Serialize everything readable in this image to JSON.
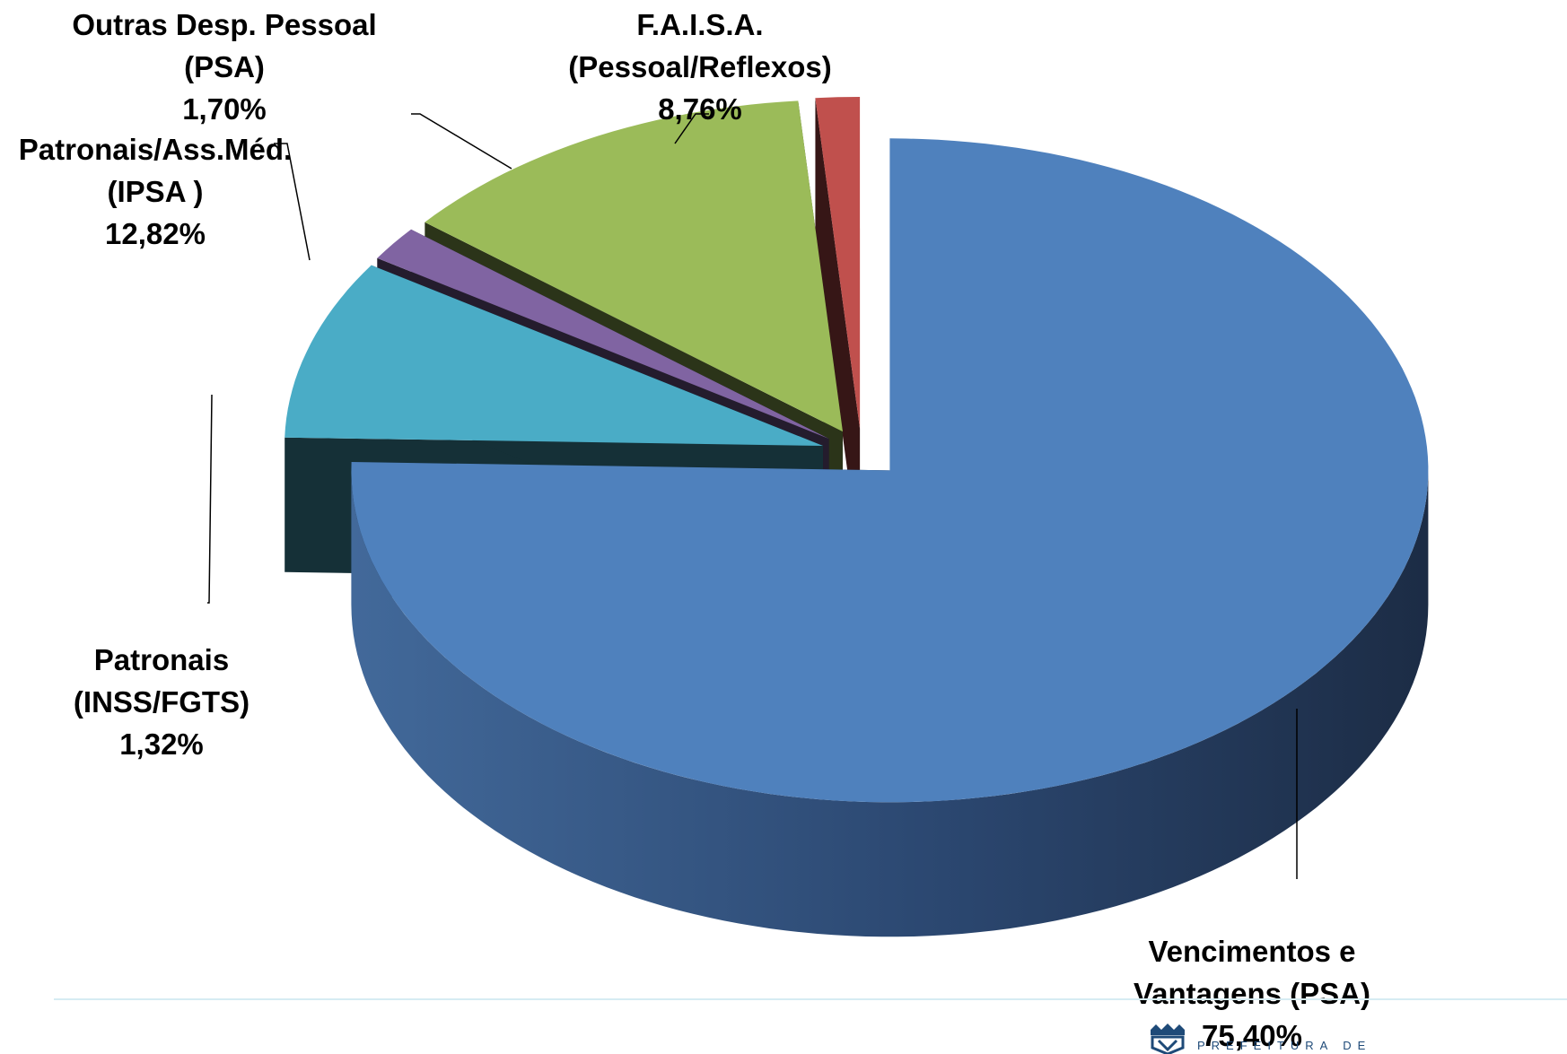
{
  "chart_data": {
    "type": "pie",
    "title": "",
    "slices": [
      {
        "key": "vencimentos",
        "lines": [
          "Vencimentos e",
          "Vantagens (PSA)"
        ],
        "pct_label": "75,40%",
        "value": 75.4,
        "color": "#4f81bd"
      },
      {
        "key": "faisa",
        "lines": [
          "F.A.I.S.A.",
          "(Pessoal/Reflexos)"
        ],
        "pct_label": "8,76%",
        "value": 8.76,
        "color": "#4aacc6"
      },
      {
        "key": "outras",
        "lines": [
          "Outras Desp. Pessoal",
          "(PSA)"
        ],
        "pct_label": "1,70%",
        "value": 1.7,
        "color": "#8064a2"
      },
      {
        "key": "patronais_ipsa",
        "lines": [
          "Patronais/Ass.Méd.",
          "(IPSA )"
        ],
        "pct_label": "12,82%",
        "value": 12.82,
        "color": "#9bbb59"
      },
      {
        "key": "patronais_inss",
        "lines": [
          "Patronais",
          "(INSS/FGTS)"
        ],
        "pct_label": "1,32%",
        "value": 1.32,
        "color": "#c0504d"
      }
    ],
    "legend": "none",
    "style": "3d-exploded"
  },
  "footer": {
    "logo_text": "PREFEITURA DE",
    "logo_icon": "city-crest-icon"
  }
}
